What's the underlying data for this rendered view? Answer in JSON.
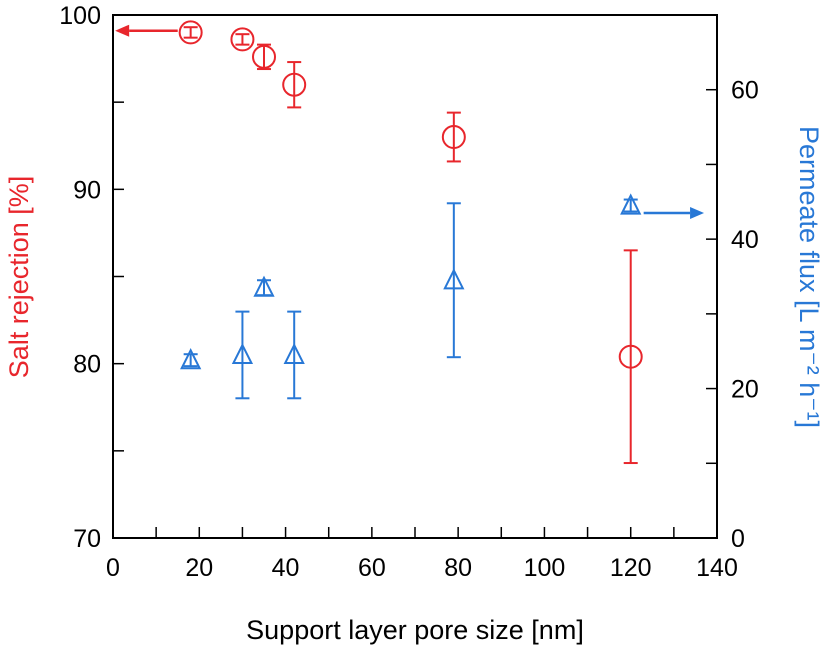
{
  "chart_data": {
    "type": "scatter",
    "title": "",
    "xlabel": "Support layer pore size [nm]",
    "ylabel_left": "Salt rejection [%]",
    "ylabel_right": "Permeate flux [L m⁻² h⁻¹]",
    "xlim": [
      0,
      140
    ],
    "ylim_left": [
      70,
      100
    ],
    "ylim_right": [
      0,
      70
    ],
    "x_ticks": [
      0,
      20,
      40,
      60,
      80,
      100,
      120,
      140
    ],
    "y_left_ticks": [
      70,
      80,
      90,
      100
    ],
    "y_right_ticks": [
      0,
      20,
      40,
      60
    ],
    "grid": false,
    "colors": {
      "rejection": "#e8262c",
      "flux": "#2878d6",
      "axes": "#000000"
    },
    "series": [
      {
        "name": "",
        "axis": "left",
        "marker": "circle",
        "x": [
          18,
          30,
          35,
          42,
          79,
          120
        ],
        "y": [
          99.0,
          98.6,
          97.6,
          96.0,
          93.0,
          80.4
        ],
        "err": [
          0.3,
          0.3,
          0.7,
          1.3,
          1.4,
          6.1
        ]
      },
      {
        "name": "",
        "axis": "right",
        "marker": "triangle",
        "x": [
          18,
          30,
          35,
          42,
          79,
          120
        ],
        "y": [
          23.8,
          24.5,
          33.5,
          24.5,
          34.5,
          44.5
        ],
        "err": [
          0.8,
          5.8,
          1.0,
          5.8,
          10.3,
          0.8
        ]
      }
    ],
    "annotations": [
      {
        "type": "arrow",
        "series": 0,
        "direction": "left",
        "from_x": 15,
        "to_x": 0.5,
        "y": 99.1
      },
      {
        "type": "arrow",
        "series": 1,
        "direction": "right",
        "from_x": 123,
        "to_x": 137,
        "y": 43.5
      }
    ]
  }
}
